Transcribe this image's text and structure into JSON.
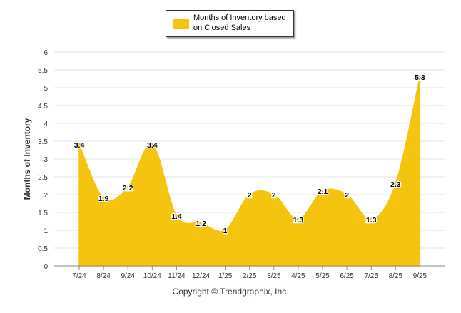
{
  "legend": {
    "label": "Months of Inventory based on Closed Sales"
  },
  "footer": {
    "copyright": "Copyright © Trendgraphix, Inc."
  },
  "colors": {
    "fill": "#f5c40f",
    "grid": "#e3e3e3",
    "axis": "#888888",
    "text": "#333333"
  },
  "chart_data": {
    "type": "area",
    "title": "",
    "xlabel": "",
    "ylabel": "Months of Inventory",
    "ylim": [
      0,
      6
    ],
    "yticks": [
      "0",
      "0.5",
      "1",
      "1.5",
      "2",
      "2.5",
      "3",
      "3.5",
      "4",
      "4.5",
      "5",
      "5.5",
      "6"
    ],
    "categories": [
      "7/24",
      "8/24",
      "9/24",
      "10/24",
      "11/24",
      "12/24",
      "1/25",
      "2/25",
      "3/25",
      "4/25",
      "5/25",
      "6/25",
      "7/25",
      "8/25",
      "9/25"
    ],
    "series": [
      {
        "name": "Months of Inventory based on Closed Sales",
        "values": [
          3.4,
          1.9,
          2.2,
          3.4,
          1.4,
          1.2,
          1,
          2,
          2,
          1.3,
          2.1,
          2,
          1.3,
          2.3,
          5.3
        ],
        "labels": [
          "3.4",
          "1.9",
          "2.2",
          "3.4",
          "1.4",
          "1.2",
          "1",
          "2",
          "2",
          "1.3",
          "2.1",
          "2",
          "1.3",
          "2.3",
          "5.3"
        ]
      }
    ],
    "grid": true,
    "legend_position": "top-center"
  }
}
